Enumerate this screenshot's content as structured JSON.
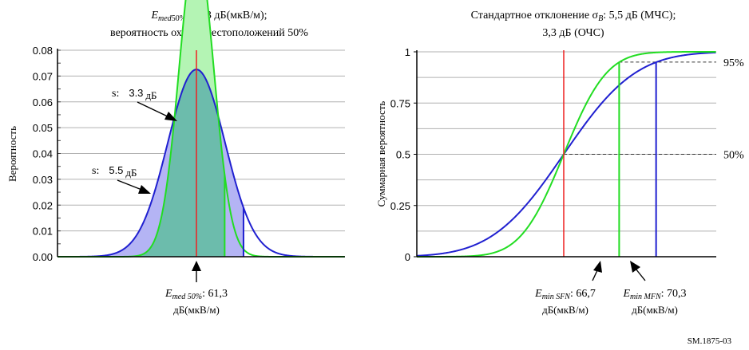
{
  "figure_id": "SM.1875-03",
  "colors": {
    "mfn": "#2020d0",
    "sfn": "#22dd22",
    "median": "#ee2020",
    "mfn_fill": "#b4b4f4",
    "sfn_fill": "#b4f4b4",
    "overlap_fill": "#6cbcac",
    "grid": "#b0b0b0",
    "axis": "#000000"
  },
  "chart_data": [
    {
      "type": "area",
      "title_line1": {
        "var": "E",
        "sub": "med",
        "sub2": "50%",
        "rest": ": 61,3 дБ(мкВ/м);"
      },
      "title_line2": "вероятность охвата местоположений 50%",
      "ylabel": "Вероятность",
      "xlabel": "",
      "ylim": [
        0,
        0.08
      ],
      "yticks": [
        "0.00",
        "0.01",
        "0.02",
        "0.03",
        "0.04",
        "0.05",
        "0.06",
        "0.07",
        "0.08"
      ],
      "grid": true,
      "median_db": 61.3,
      "series": [
        {
          "name": "5.5 дБ",
          "label_prefix": "s:",
          "label_value": "5.5",
          "label_unit": "дБ",
          "mean": 61.3,
          "sigma": 5.5,
          "shade_to_db": 70.3,
          "color_key": "mfn"
        },
        {
          "name": "3.3 дБ",
          "label_prefix": "s:",
          "label_value": "3.3",
          "label_unit": "дБ",
          "mean": 61.3,
          "sigma": 3.3,
          "shade_to_db": 66.7,
          "color_key": "sfn"
        }
      ],
      "annotation": {
        "var": "E",
        "sub": "med 50%",
        "rest": ": 61,3",
        "unit": "дБ(мкВ/м)"
      }
    },
    {
      "type": "line",
      "title_line1_prefix": "Стандартное отклонение σ",
      "title_line1_sub": "B",
      "title_line1_rest": ": 5,5 дБ (МЧС);",
      "title_line2": "3,3 дБ (ОЧС)",
      "ylabel": "Суммарная вероятность",
      "xlabel": "",
      "ylim": [
        0,
        1
      ],
      "yticks": [
        "0",
        "0.25",
        "0.5",
        "0.75",
        "1"
      ],
      "grid": true,
      "median_db": 61.3,
      "reference_levels": [
        {
          "value": 0.95,
          "label": "95%"
        },
        {
          "value": 0.5,
          "label": "50%"
        }
      ],
      "series": [
        {
          "name": "МЧС",
          "mean": 61.3,
          "sigma": 5.5,
          "color_key": "mfn"
        },
        {
          "name": "ОЧС",
          "mean": 61.3,
          "sigma": 3.3,
          "color_key": "sfn"
        }
      ],
      "annotations": [
        {
          "var": "E",
          "sub": "min SFN",
          "rest": ": 66,7",
          "unit": "дБ(мкВ/м)",
          "x_db": 66.7
        },
        {
          "var": "E",
          "sub": "min MFN",
          "rest": ": 70,3",
          "unit": "дБ(мкВ/м)",
          "x_db": 70.3
        }
      ]
    }
  ]
}
